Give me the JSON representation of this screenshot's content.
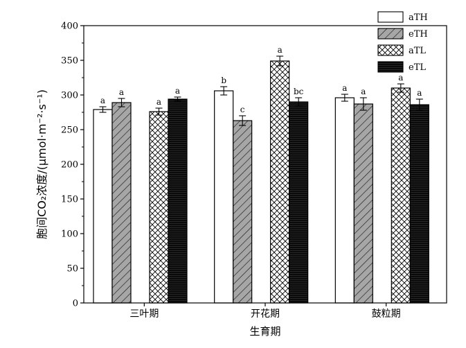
{
  "chart_data": {
    "type": "bar",
    "xlabel": "生育期",
    "ylabel": "胞间CO₂浓度/(μmol·m⁻²·s⁻¹)",
    "ylim": [
      0,
      400
    ],
    "yticks": [
      0,
      50,
      100,
      150,
      200,
      250,
      300,
      350,
      400
    ],
    "grid": false,
    "legend_position": "top-right",
    "categories": [
      "三叶期",
      "开花期",
      "鼓粒期"
    ],
    "series": [
      {
        "name": "aTH",
        "pattern": "white",
        "values": [
          279,
          306,
          296
        ],
        "errors": [
          4,
          6,
          5
        ],
        "labels": [
          "a",
          "b",
          "a"
        ]
      },
      {
        "name": "eTH",
        "pattern": "diagonal-lines",
        "values": [
          289,
          263,
          287
        ],
        "errors": [
          6,
          7,
          9
        ],
        "labels": [
          "a",
          "c",
          "a"
        ]
      },
      {
        "name": "aTL",
        "pattern": "crosshatch",
        "values": [
          276,
          349,
          310
        ],
        "errors": [
          5,
          7,
          6
        ],
        "labels": [
          "a",
          "a",
          "a"
        ]
      },
      {
        "name": "eTL",
        "pattern": "black",
        "values": [
          294,
          290,
          286
        ],
        "errors": [
          3,
          6,
          8
        ],
        "labels": [
          "a",
          "bc",
          "a"
        ]
      }
    ]
  }
}
